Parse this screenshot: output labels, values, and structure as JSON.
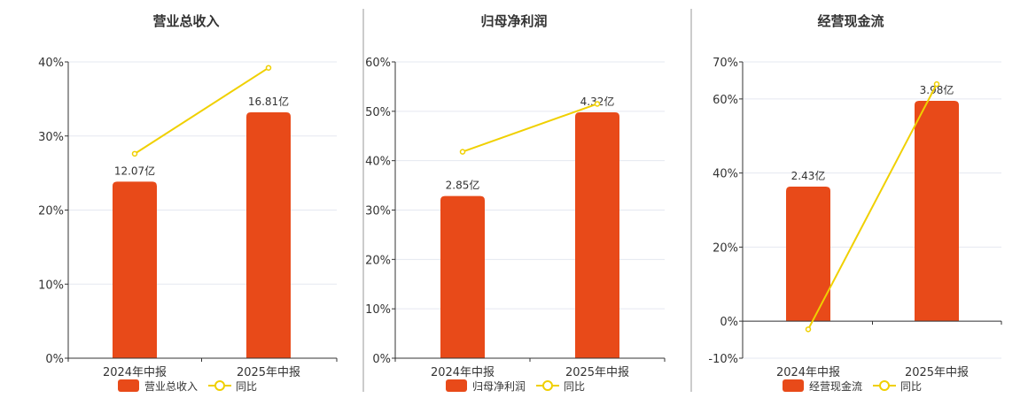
{
  "colors": {
    "bar": "#e84a19",
    "line": "#f0d000",
    "grid": "#e5e8f0",
    "axis": "#333333",
    "divider": "#999999"
  },
  "legend": {
    "bar_label_key": "title",
    "line_label": "同比"
  },
  "chart_data": [
    {
      "type": "bar",
      "title": "营业总收入",
      "categories": [
        "2024年中报",
        "2025年中报"
      ],
      "series": [
        {
          "name": "营业总收入",
          "type": "bar",
          "values": [
            12.07,
            16.81
          ],
          "labels": [
            "12.07亿",
            "16.81亿"
          ]
        },
        {
          "name": "同比",
          "type": "line",
          "values": [
            27.6,
            39.2
          ]
        }
      ],
      "y_ticks": [
        "0%",
        "10%",
        "20%",
        "30%",
        "40%"
      ],
      "ylim": [
        0,
        40
      ]
    },
    {
      "type": "bar",
      "title": "归母净利润",
      "categories": [
        "2024年中报",
        "2025年中报"
      ],
      "series": [
        {
          "name": "归母净利润",
          "type": "bar",
          "values": [
            2.85,
            4.32
          ],
          "labels": [
            "2.85亿",
            "4.32亿"
          ]
        },
        {
          "name": "同比",
          "type": "line",
          "values": [
            41.8,
            51.5
          ]
        }
      ],
      "y_ticks": [
        "0%",
        "10%",
        "20%",
        "30%",
        "40%",
        "50%",
        "60%"
      ],
      "ylim": [
        0,
        60
      ]
    },
    {
      "type": "bar",
      "title": "经营现金流",
      "categories": [
        "2024年中报",
        "2025年中报"
      ],
      "series": [
        {
          "name": "经营现金流",
          "type": "bar",
          "values": [
            2.43,
            3.98
          ],
          "labels": [
            "2.43亿",
            "3.98亿"
          ]
        },
        {
          "name": "同比",
          "type": "line",
          "values": [
            -2.2,
            64.0
          ]
        }
      ],
      "y_ticks": [
        "-10%",
        "0%",
        "20%",
        "40%",
        "60%",
        "70%"
      ],
      "ylim": [
        -10,
        70
      ]
    }
  ]
}
